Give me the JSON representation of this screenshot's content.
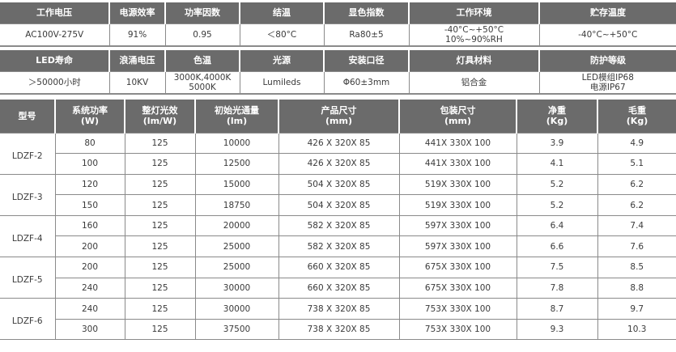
{
  "spec1": {
    "headers": [
      "工作电压",
      "电源效率",
      "功率因数",
      "结温",
      "显色指数",
      "工作环境",
      "贮存温度"
    ],
    "values": [
      "AC100V-275V",
      "91%",
      "0.95",
      "＜80°C",
      "Ra80±5",
      "-40°C~+50°C\n10%~90%RH",
      "-40°C~+50°C"
    ]
  },
  "spec2": {
    "headers": [
      "LED寿命",
      "浪涌电压",
      "色温",
      "光源",
      "安装口径",
      "灯具材料",
      "防护等级"
    ],
    "values": [
      "＞50000小时",
      "10KV",
      "3000K,4000K\n5000K",
      "Lumileds",
      "Φ60±3mm",
      "铝合金",
      "LED模组IP68\n电源IP67"
    ]
  },
  "models": {
    "headers": [
      "型号",
      "系统功率\n(W)",
      "整灯光效\n(lm/W)",
      "初始光通量\n(lm)",
      "产品尺寸\n(mm)",
      "包装尺寸\n(mm)",
      "净重\n(Kg)",
      "毛重\n(Kg)"
    ],
    "groups": [
      {
        "model": "LDZF-2",
        "rows": [
          [
            "80",
            "125",
            "10000",
            "426 X 320X 85",
            "441X 330X 100",
            "3.9",
            "4.9"
          ],
          [
            "100",
            "125",
            "12500",
            "426 X 320X 85",
            "441X 330X 100",
            "4.1",
            "5.1"
          ]
        ]
      },
      {
        "model": "LDZF-3",
        "rows": [
          [
            "120",
            "125",
            "15000",
            "504 X 320X 85",
            "519X 330X 100",
            "5.2",
            "6.2"
          ],
          [
            "150",
            "125",
            "18750",
            "504 X 320X 85",
            "519X 330X 100",
            "5.2",
            "6.2"
          ]
        ]
      },
      {
        "model": "LDZF-4",
        "rows": [
          [
            "160",
            "125",
            "20000",
            "582 X 320X 85",
            "597X 330X 100",
            "6.4",
            "7.4"
          ],
          [
            "200",
            "125",
            "25000",
            "582 X 320X 85",
            "597X 330X 100",
            "6.6",
            "7.6"
          ]
        ]
      },
      {
        "model": "LDZF-5",
        "rows": [
          [
            "200",
            "125",
            "25000",
            "660 X 320X 85",
            "675X 330X 100",
            "7.5",
            "8.5"
          ],
          [
            "240",
            "125",
            "30000",
            "660 X 320X 85",
            "675X 330X 100",
            "7.8",
            "8.8"
          ]
        ]
      },
      {
        "model": "LDZF-6",
        "rows": [
          [
            "240",
            "125",
            "30000",
            "738 X 320X 85",
            "753X 330X 100",
            "8.7",
            "9.7"
          ],
          [
            "300",
            "125",
            "37500",
            "738 X 320X 85",
            "753X 330X 100",
            "9.3",
            "10.3"
          ]
        ]
      }
    ]
  }
}
